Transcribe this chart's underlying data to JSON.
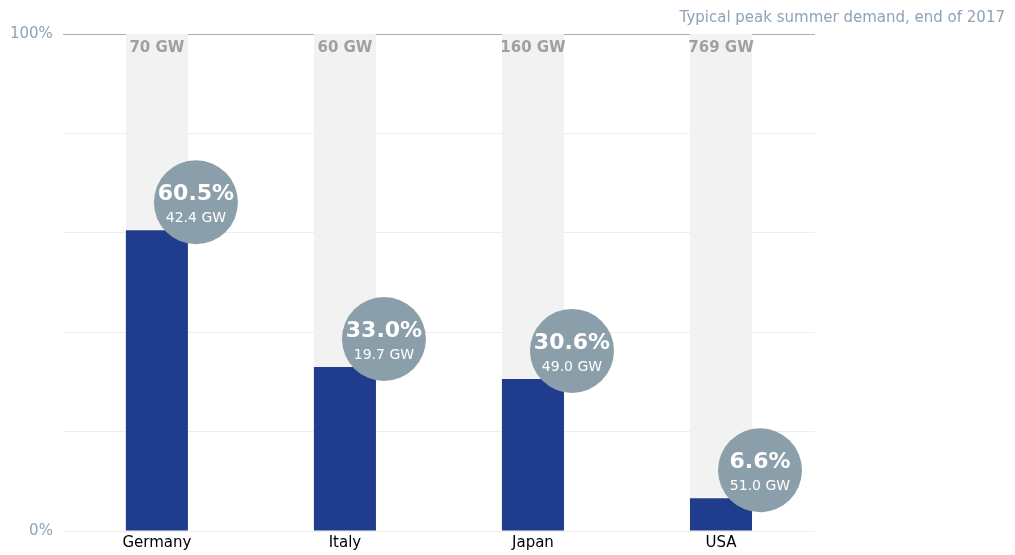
{
  "chart_data": {
    "type": "bar",
    "categories": [
      "Germany",
      "Italy",
      "Japan",
      "USA"
    ],
    "series": [
      {
        "color": "#1f3d8c",
        "values": [
          60.5,
          33.0,
          30.6,
          6.6
        ],
        "value_labels": [
          "60.5%",
          "33.0%",
          "30.6%",
          "6.6%"
        ]
      },
      {
        "color": "#f2f2f2",
        "values": [
          39.5,
          67.0,
          69.4,
          93.4
        ]
      }
    ],
    "stacked": true,
    "ylim": [
      0,
      100
    ],
    "yticks": [
      {
        "value": 0,
        "label": "0%"
      },
      {
        "value": 20,
        "label": null
      },
      {
        "value": 40,
        "label": null
      },
      {
        "value": 60,
        "label": null
      },
      {
        "value": 80,
        "label": null
      },
      {
        "value": 100,
        "label": "100%"
      }
    ],
    "grid": "y",
    "legend": false,
    "annotations": [
      "Typical peak summer demand, end of 2017",
      {
        "text": "70 GW",
        "x": "Germany",
        "y": 100
      },
      {
        "text": "60 GW",
        "x": "Italy",
        "y": 100
      },
      {
        "text": "160 GW",
        "x": "Japan",
        "y": 100
      },
      {
        "text": "769 GW",
        "x": "USA",
        "y": 100
      },
      {
        "text": "42.4 GW",
        "x": "Germany",
        "y": 60.5
      },
      {
        "text": "19.7 GW",
        "x": "Italy",
        "y": 33.0
      },
      {
        "text": "49.0 GW",
        "x": "Japan",
        "y": 30.6
      },
      {
        "text": "51.0 GW",
        "x": "USA",
        "y": 6.6
      }
    ]
  }
}
